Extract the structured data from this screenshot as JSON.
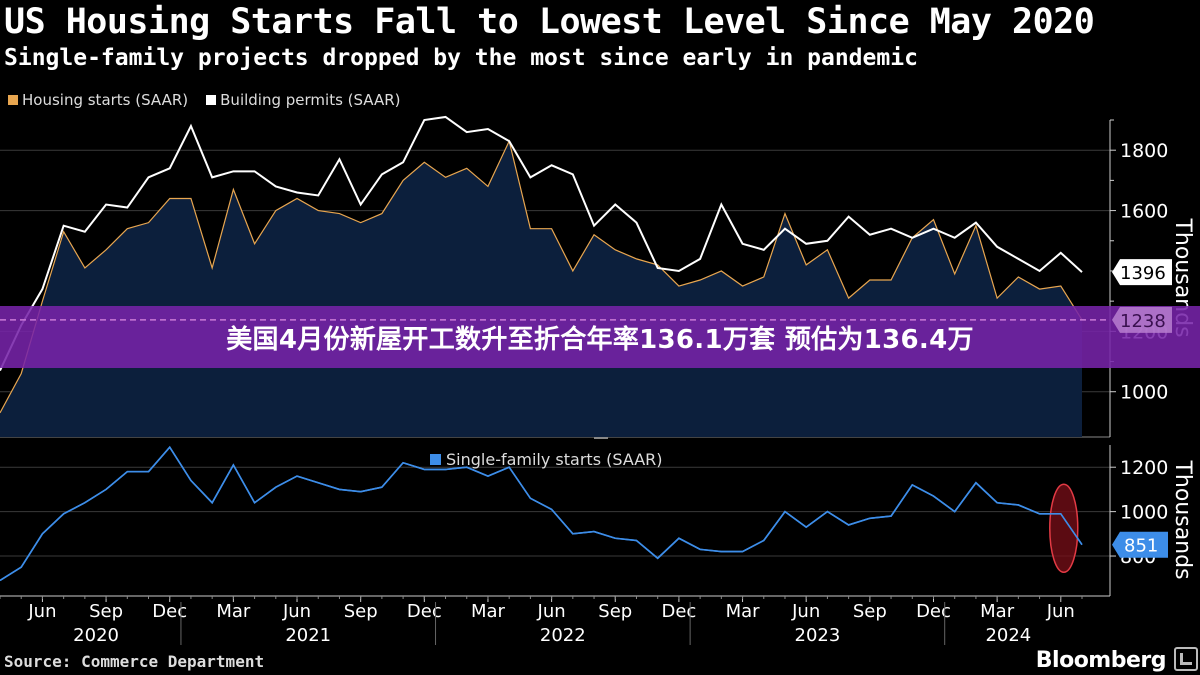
{
  "header": {
    "title": "US Housing Starts Fall to Lowest Level Since May 2020",
    "subtitle": "Single-family projects dropped by the most since early in pandemic"
  },
  "banner": {
    "text": "美国4月份新屋开工数升至折合年率136.1万套 预估为136.4万"
  },
  "footer": {
    "source": "Source: Commerce Department",
    "brand": "Bloomberg"
  },
  "colors": {
    "starts": "#e8a650",
    "permits": "#ffffff",
    "single": "#3d8de8",
    "area": "#0c1f3c",
    "highlight": "#b4141e"
  },
  "chart_data": [
    {
      "type": "line",
      "series": [
        {
          "name": "Housing starts (SAAR)",
          "values": [
            930,
            1060,
            1300,
            1530,
            1410,
            1470,
            1540,
            1560,
            1640,
            1640,
            1410,
            1670,
            1490,
            1600,
            1640,
            1600,
            1590,
            1560,
            1590,
            1700,
            1760,
            1710,
            1740,
            1680,
            1830,
            1540,
            1540,
            1400,
            1520,
            1470,
            1440,
            1420,
            1350,
            1370,
            1400,
            1350,
            1380,
            1590,
            1420,
            1470,
            1310,
            1370,
            1370,
            1510,
            1570,
            1390,
            1550,
            1310,
            1380,
            1340,
            1350,
            1238
          ]
        },
        {
          "name": "Building permits (SAAR)",
          "values": [
            1070,
            1220,
            1340,
            1550,
            1530,
            1620,
            1610,
            1710,
            1740,
            1880,
            1710,
            1730,
            1730,
            1680,
            1660,
            1650,
            1770,
            1620,
            1720,
            1760,
            1900,
            1910,
            1860,
            1870,
            1830,
            1710,
            1750,
            1720,
            1550,
            1620,
            1560,
            1410,
            1400,
            1440,
            1620,
            1490,
            1470,
            1540,
            1490,
            1500,
            1580,
            1520,
            1540,
            1510,
            1540,
            1510,
            1560,
            1480,
            1440,
            1400,
            1460,
            1396
          ]
        }
      ],
      "x_start": "2020-04",
      "x_end": "2024-07",
      "x_ticks": [
        "Jun",
        "Sep",
        "Dec",
        "Mar",
        "Jun",
        "Sep",
        "Dec",
        "Mar",
        "Jun",
        "Sep",
        "Dec",
        "Mar",
        "Jun",
        "Sep",
        "Dec",
        "Mar",
        "Jun"
      ],
      "years": [
        "2020",
        "2021",
        "2022",
        "2023",
        "2024"
      ],
      "y_ticks": [
        1000,
        1200,
        1600,
        1800
      ],
      "ylim": [
        850,
        1900
      ],
      "ylabel": "Thousands",
      "last_value_labels": [
        "1396",
        "1238"
      ],
      "legend": "top-left"
    },
    {
      "type": "line",
      "series": [
        {
          "name": "Single-family starts (SAAR)",
          "values": [
            690,
            750,
            900,
            990,
            1040,
            1100,
            1180,
            1180,
            1290,
            1140,
            1040,
            1210,
            1040,
            1110,
            1160,
            1130,
            1100,
            1090,
            1110,
            1220,
            1190,
            1190,
            1200,
            1160,
            1200,
            1060,
            1010,
            900,
            910,
            880,
            870,
            790,
            880,
            830,
            820,
            820,
            870,
            1000,
            930,
            1000,
            940,
            970,
            980,
            1120,
            1070,
            1000,
            1130,
            1040,
            1030,
            990,
            990,
            851
          ]
        }
      ],
      "x_start": "2020-04",
      "x_end": "2024-07",
      "y_ticks": [
        800,
        1000,
        1200
      ],
      "ylim": [
        620,
        1300
      ],
      "ylabel": "Thousands",
      "last_value_labels": [
        "851"
      ],
      "legend": "top-center"
    }
  ]
}
